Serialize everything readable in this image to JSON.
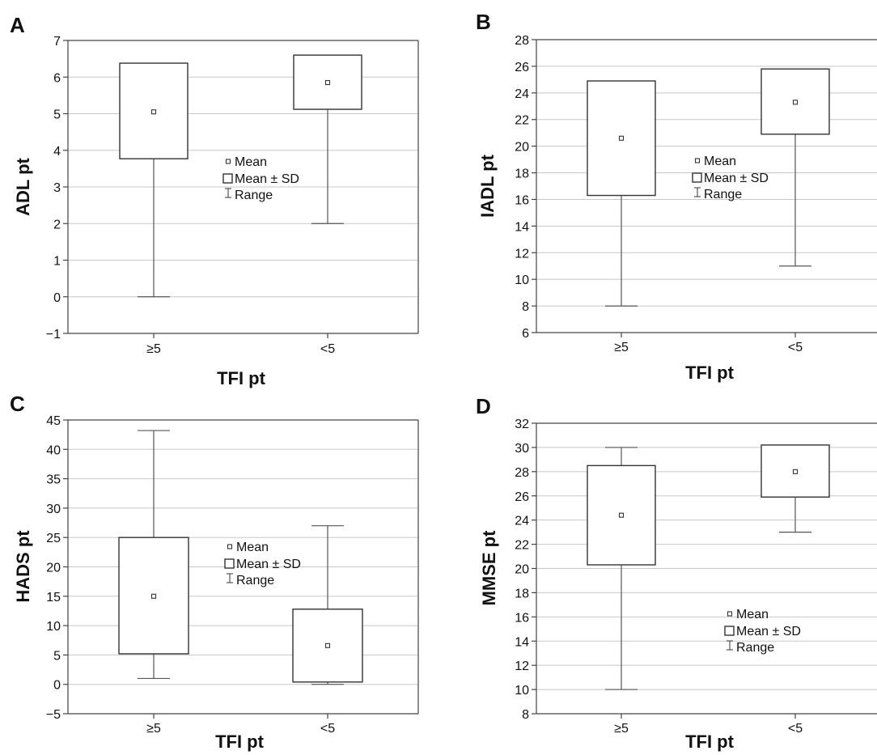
{
  "chart_data": [
    {
      "panel": "A",
      "type": "box",
      "ylabel": "ADL pt",
      "xlabel": "TFI pt",
      "categories": [
        "≥5",
        "<5"
      ],
      "ylim": [
        -1,
        7
      ],
      "yticks": [
        -1,
        0,
        1,
        2,
        3,
        4,
        5,
        6,
        7
      ],
      "ytick_labels": [
        "−1",
        "0",
        "1",
        "2",
        "3",
        "4",
        "5",
        "6",
        "7"
      ],
      "grid": true,
      "groups": [
        {
          "mean": 5.05,
          "sd_low": 3.77,
          "sd_high": 6.38,
          "min": 0,
          "max": 6.38
        },
        {
          "mean": 5.85,
          "sd_low": 5.12,
          "sd_high": 6.6,
          "min": 2,
          "max": 6.6
        }
      ],
      "legend": [
        "Mean",
        "Mean ± SD",
        "Range"
      ]
    },
    {
      "panel": "B",
      "type": "box",
      "ylabel": "IADL pt",
      "xlabel": "TFI pt",
      "categories": [
        "≥5",
        "<5"
      ],
      "ylim": [
        6,
        28
      ],
      "yticks": [
        6,
        8,
        10,
        12,
        14,
        16,
        18,
        20,
        22,
        24,
        26,
        28
      ],
      "ytick_labels": [
        "6",
        "8",
        "10",
        "12",
        "14",
        "16",
        "18",
        "20",
        "22",
        "24",
        "26",
        "28"
      ],
      "grid": true,
      "groups": [
        {
          "mean": 20.6,
          "sd_low": 16.3,
          "sd_high": 24.9,
          "min": 8,
          "max": 24.9
        },
        {
          "mean": 23.3,
          "sd_low": 20.9,
          "sd_high": 25.8,
          "min": 11,
          "max": 25.8
        }
      ],
      "legend": [
        "Mean",
        "Mean ± SD",
        "Range"
      ]
    },
    {
      "panel": "C",
      "type": "box",
      "ylabel": "HADS pt",
      "xlabel": "TFI pt",
      "categories": [
        "≥5",
        "<5"
      ],
      "ylim": [
        -5,
        45
      ],
      "yticks": [
        -5,
        0,
        5,
        10,
        15,
        20,
        25,
        30,
        35,
        40,
        45
      ],
      "ytick_labels": [
        "−5",
        "0",
        "5",
        "10",
        "15",
        "20",
        "25",
        "30",
        "35",
        "40",
        "45"
      ],
      "grid": true,
      "groups": [
        {
          "mean": 15,
          "sd_low": 5.2,
          "sd_high": 25,
          "min": 1,
          "max": 43.2
        },
        {
          "mean": 6.6,
          "sd_low": 0.4,
          "sd_high": 12.8,
          "min": 0,
          "max": 27
        }
      ],
      "legend": [
        "Mean",
        "Mean ± SD",
        "Range"
      ]
    },
    {
      "panel": "D",
      "type": "box",
      "ylabel": "MMSE pt",
      "xlabel": "TFI pt",
      "categories": [
        "≥5",
        "<5"
      ],
      "ylim": [
        8,
        32
      ],
      "yticks": [
        8,
        10,
        12,
        14,
        16,
        18,
        20,
        22,
        24,
        26,
        28,
        30,
        32
      ],
      "ytick_labels": [
        "8",
        "10",
        "12",
        "14",
        "16",
        "18",
        "20",
        "22",
        "24",
        "26",
        "28",
        "30",
        "32"
      ],
      "grid": true,
      "groups": [
        {
          "mean": 24.4,
          "sd_low": 20.3,
          "sd_high": 28.5,
          "min": 10,
          "max": 30
        },
        {
          "mean": 28,
          "sd_low": 25.9,
          "sd_high": 30.2,
          "min": 23,
          "max": 30.2
        }
      ],
      "legend": [
        "Mean",
        "Mean ± SD",
        "Range"
      ]
    }
  ]
}
